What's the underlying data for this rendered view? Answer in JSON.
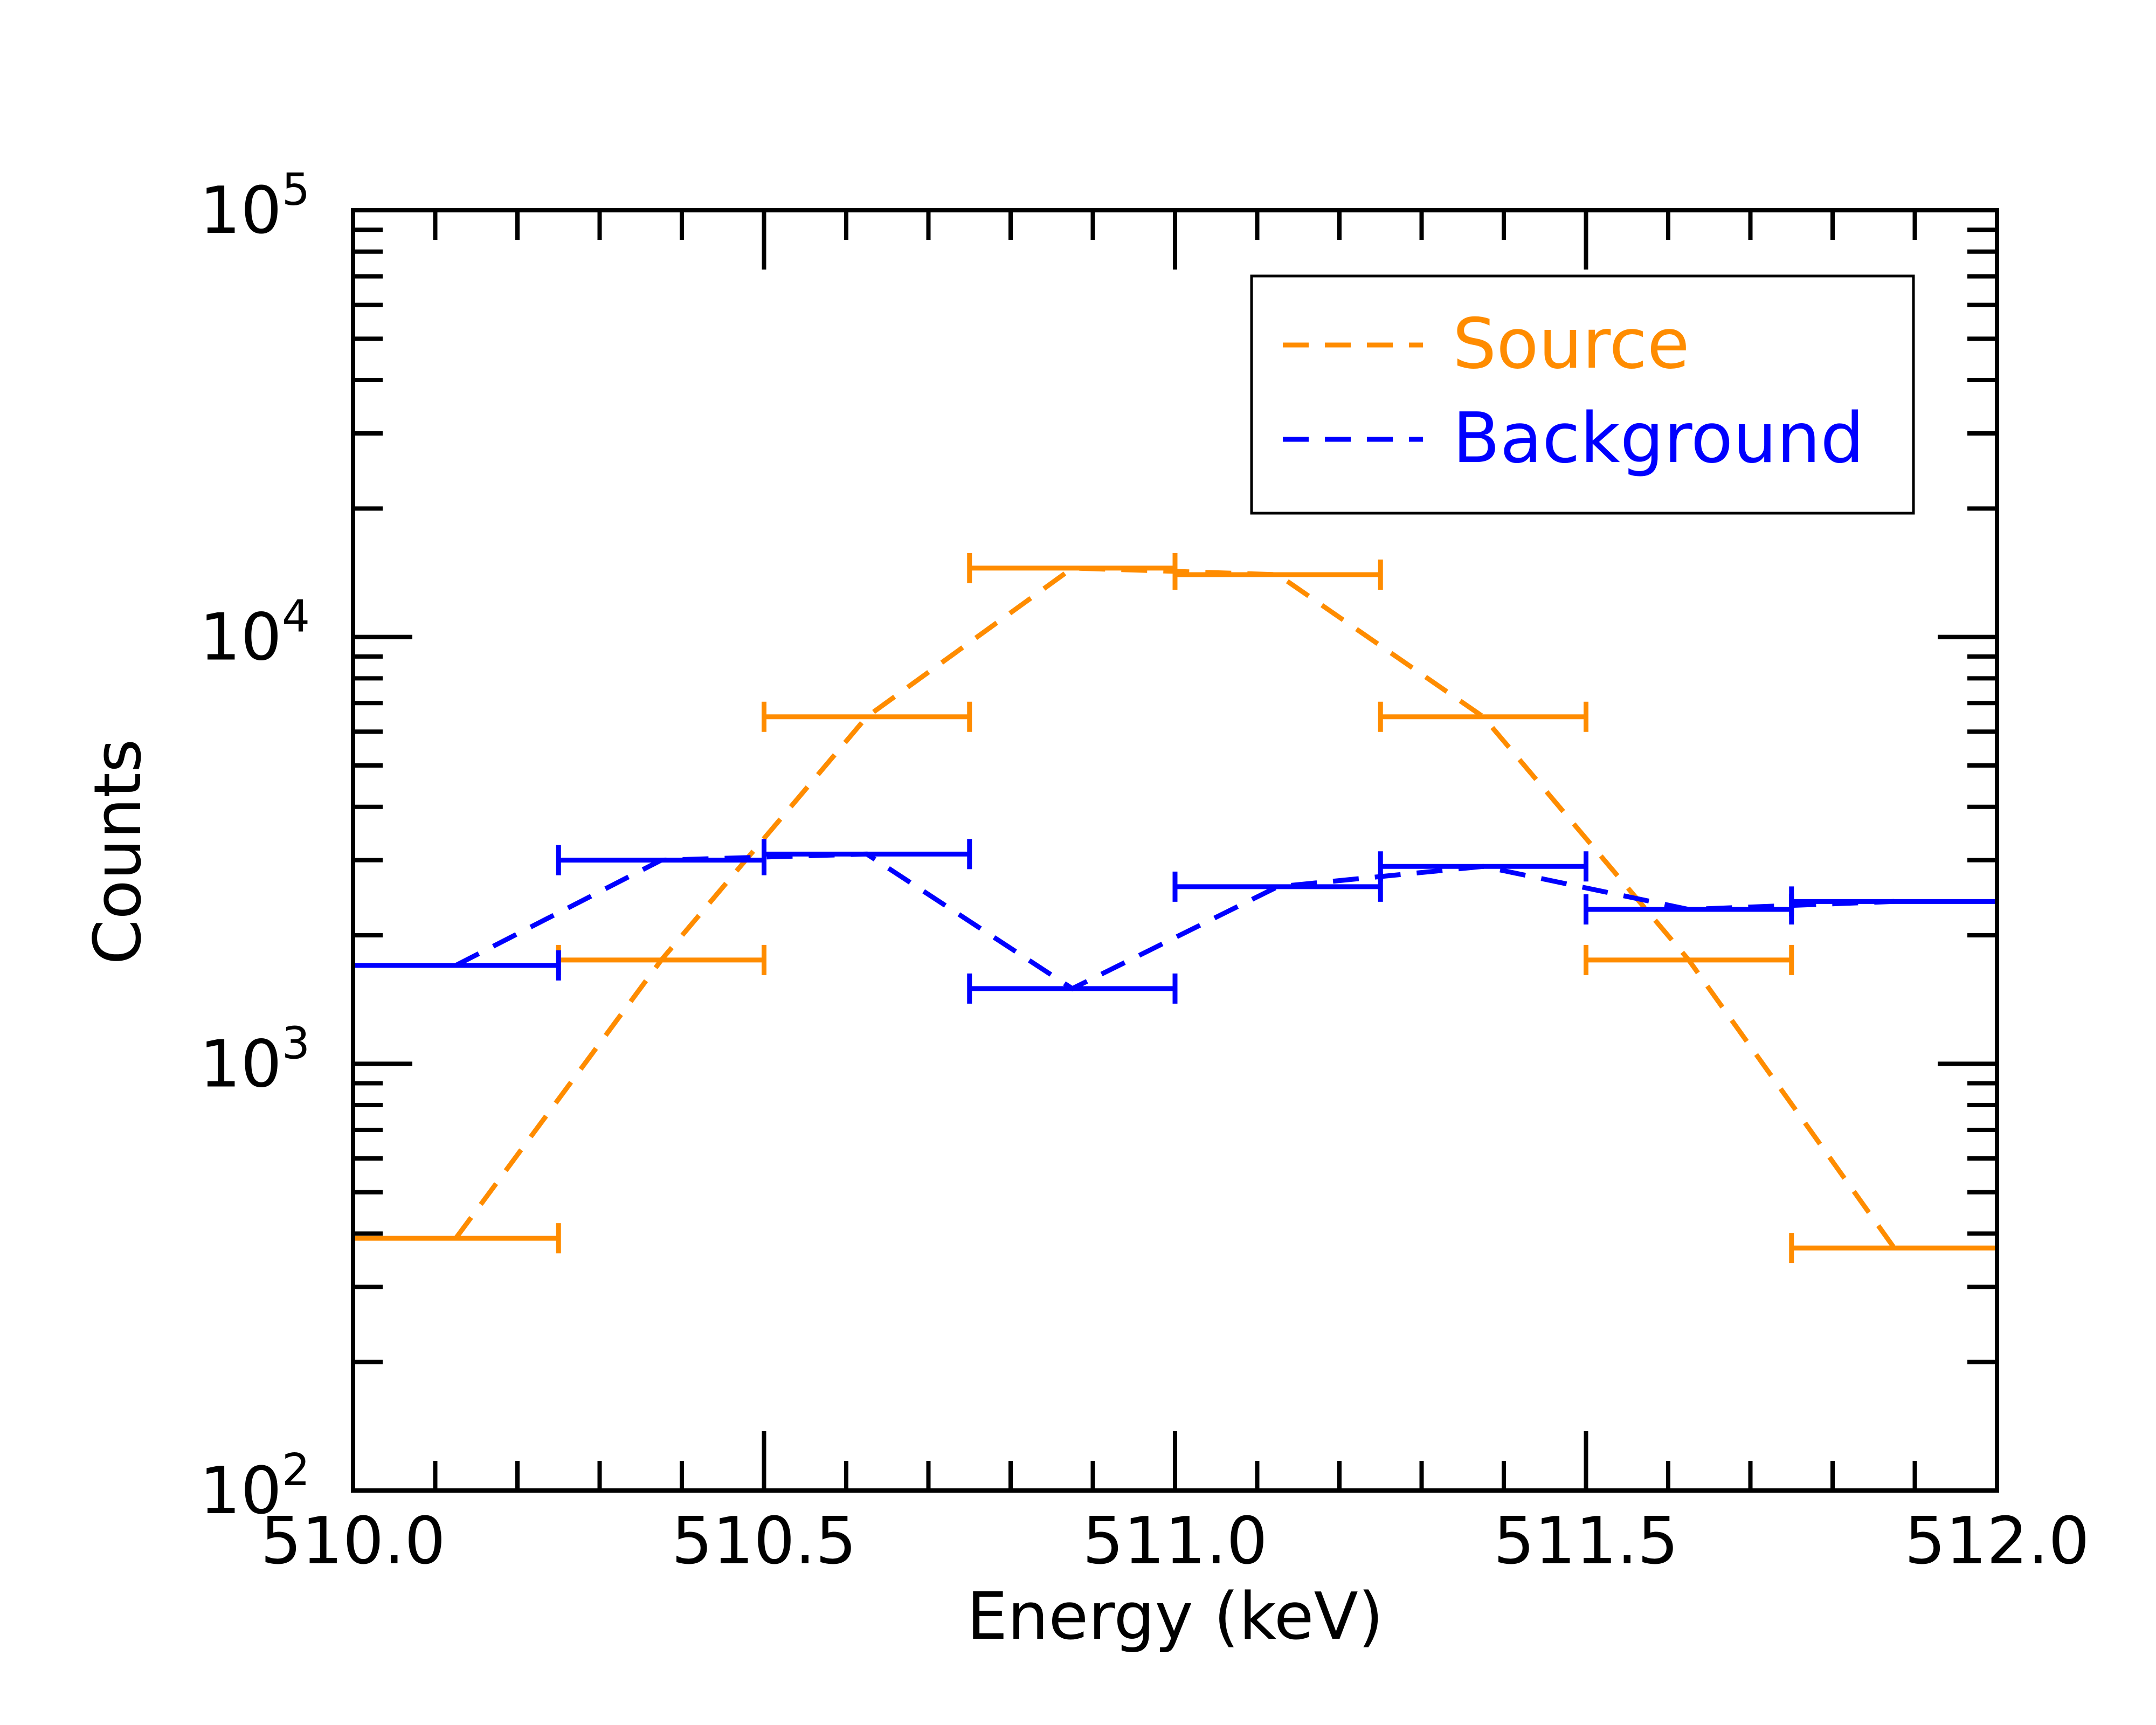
{
  "chart_data": {
    "type": "step",
    "title": "",
    "xlabel": "Energy (keV)",
    "ylabel": "Counts",
    "xlim": [
      510.0,
      512.0
    ],
    "ylim": [
      100,
      100000
    ],
    "yscale": "log",
    "grid": false,
    "legend_placement": "top-right",
    "x_ticks": [
      510.0,
      510.5,
      511.0,
      511.5,
      512.0
    ],
    "x_tick_labels": [
      "510.0",
      "510.5",
      "511.0",
      "511.5",
      "512.0"
    ],
    "y_ticks": [
      {
        "value": 100,
        "base": "10",
        "exp": "2"
      },
      {
        "value": 1000,
        "base": "10",
        "exp": "3"
      },
      {
        "value": 10000,
        "base": "10",
        "exp": "4"
      },
      {
        "value": 100000,
        "base": "10",
        "exp": "5"
      }
    ],
    "series": [
      {
        "name": "Source",
        "color": "#ff8c00",
        "bins": [
          {
            "x0": 510.0,
            "x1": 510.25,
            "y": 390
          },
          {
            "x0": 510.25,
            "x1": 510.5,
            "y": 1750
          },
          {
            "x0": 510.5,
            "x1": 510.75,
            "y": 6500
          },
          {
            "x0": 510.75,
            "x1": 511.0,
            "y": 14500
          },
          {
            "x0": 511.0,
            "x1": 511.25,
            "y": 14000
          },
          {
            "x0": 511.25,
            "x1": 511.5,
            "y": 6500
          },
          {
            "x0": 511.5,
            "x1": 511.75,
            "y": 1750
          },
          {
            "x0": 511.75,
            "x1": 512.0,
            "y": 370
          }
        ]
      },
      {
        "name": "Background",
        "color": "#0000ff",
        "bins": [
          {
            "x0": 510.0,
            "x1": 510.25,
            "y": 1700
          },
          {
            "x0": 510.25,
            "x1": 510.5,
            "y": 3000
          },
          {
            "x0": 510.5,
            "x1": 510.75,
            "y": 3100
          },
          {
            "x0": 510.75,
            "x1": 511.0,
            "y": 1500
          },
          {
            "x0": 511.0,
            "x1": 511.25,
            "y": 2600
          },
          {
            "x0": 511.25,
            "x1": 511.5,
            "y": 2900
          },
          {
            "x0": 511.5,
            "x1": 511.75,
            "y": 2300
          },
          {
            "x0": 511.75,
            "x1": 512.0,
            "y": 2400
          }
        ]
      }
    ]
  }
}
